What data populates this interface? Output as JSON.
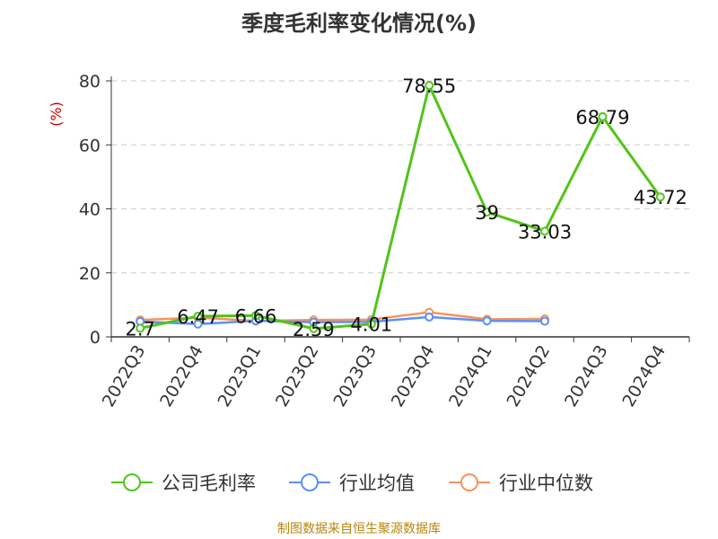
{
  "chart_data": {
    "type": "line",
    "title": "季度毛利率变化情况(%)",
    "ylabel": "(%)",
    "xlabel": "",
    "categories": [
      "2022Q3",
      "2022Q4",
      "2023Q1",
      "2023Q2",
      "2023Q3",
      "2023Q4",
      "2024Q1",
      "2024Q2",
      "2024Q3",
      "2024Q4"
    ],
    "ylim": [
      0,
      80
    ],
    "yticks": [
      0,
      20,
      40,
      60,
      80
    ],
    "grid": true,
    "legend_position": "bottom",
    "series": [
      {
        "name": "公司毛利率",
        "color": "#52c41a",
        "values": [
          2.7,
          6.47,
          6.66,
          2.59,
          4.01,
          78.55,
          39,
          33.03,
          68.79,
          43.72
        ],
        "labels": [
          "2.7",
          "6.47",
          "6.66",
          "2.59",
          "4.01",
          "78.55",
          "39",
          "33.03",
          "68.79",
          "43.72"
        ]
      },
      {
        "name": "行业均值",
        "color": "#5b8ff9",
        "values": [
          4.8,
          4.0,
          5.0,
          4.6,
          4.7,
          6.2,
          5.0,
          4.9,
          null,
          null
        ]
      },
      {
        "name": "行业中位数",
        "color": "#f6935e",
        "values": [
          5.3,
          6.0,
          5.0,
          5.3,
          5.4,
          7.7,
          5.5,
          5.6,
          null,
          null
        ]
      }
    ]
  },
  "source_note": "制图数据来自恒生聚源数据库"
}
